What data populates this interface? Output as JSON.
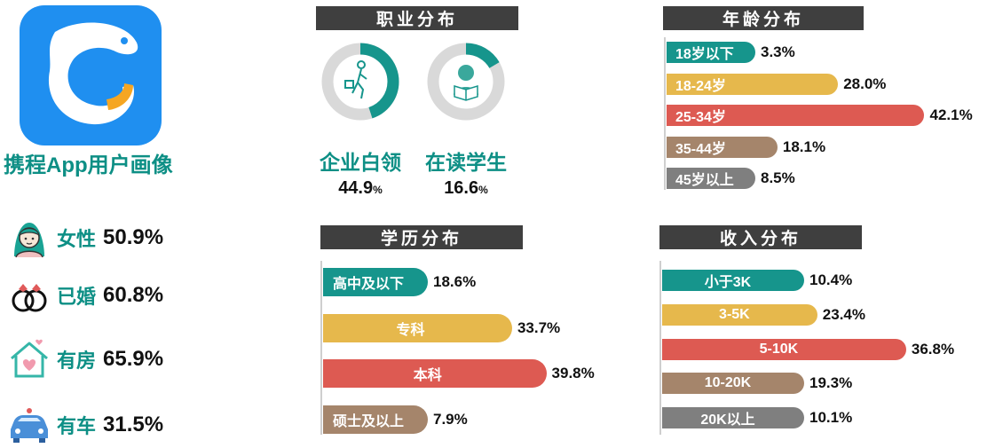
{
  "app_title": "携程App用户画像",
  "demographics": [
    {
      "label": "女性",
      "value": "50.9%",
      "icon": "woman-icon"
    },
    {
      "label": "已婚",
      "value": "60.8%",
      "icon": "rings-icon"
    },
    {
      "label": "有房",
      "value": "65.9%",
      "icon": "house-icon"
    },
    {
      "label": "有车",
      "value": "31.5%",
      "icon": "car-icon"
    }
  ],
  "colors": {
    "teal": "#16958c",
    "yellow": "#e6b84c",
    "red": "#dd5a52",
    "brown": "#a5856b",
    "gray": "#7f7f7f",
    "donut_track": "#d9d9d9",
    "header_bg": "#3f3f3f"
  },
  "chart_data": [
    {
      "type": "pie",
      "title": "职业分布",
      "slices": [
        {
          "label": "企业白领",
          "value": 44.9,
          "display": "44.9",
          "unit": "%"
        },
        {
          "label": "在读学生",
          "value": 16.6,
          "display": "16.6",
          "unit": "%"
        }
      ]
    },
    {
      "type": "bar",
      "orientation": "horizontal",
      "title": "年龄分布",
      "categories": [
        "18岁以下",
        "18-24岁",
        "25-34岁",
        "35-44岁",
        "45岁以上"
      ],
      "values": [
        3.3,
        28.0,
        42.1,
        18.1,
        8.5
      ],
      "labels": [
        "3.3%",
        "28.0%",
        "42.1%",
        "18.1%",
        "8.5%"
      ]
    },
    {
      "type": "bar",
      "orientation": "horizontal",
      "title": "学历分布",
      "categories": [
        "高中及以下",
        "专科",
        "本科",
        "硕士及以上"
      ],
      "values": [
        18.6,
        33.7,
        39.8,
        7.9
      ],
      "labels": [
        "18.6%",
        "33.7%",
        "39.8%",
        "7.9%"
      ]
    },
    {
      "type": "bar",
      "orientation": "horizontal",
      "title": "收入分布",
      "categories": [
        "小于3K",
        "3-5K",
        "5-10K",
        "10-20K",
        "20K以上"
      ],
      "values": [
        10.4,
        23.4,
        36.8,
        19.3,
        10.1
      ],
      "labels": [
        "10.4%",
        "23.4%",
        "36.8%",
        "19.3%",
        "10.1%"
      ]
    }
  ]
}
